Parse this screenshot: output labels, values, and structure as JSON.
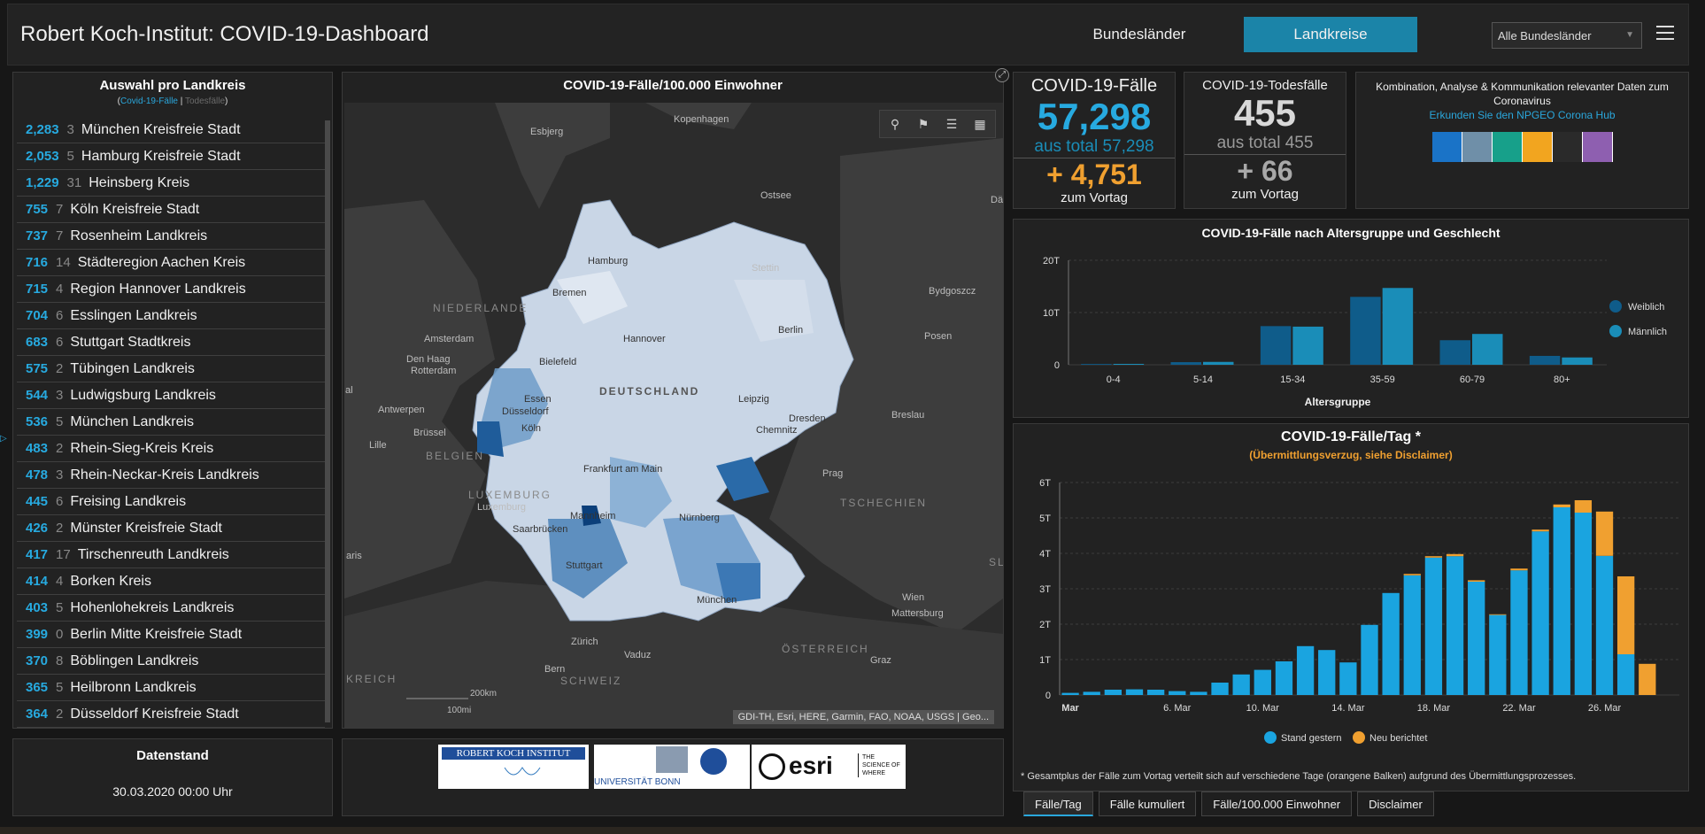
{
  "header": {
    "title": "Robert Koch-Institut: COVID-19-Dashboard",
    "tab_states": "Bundesländer",
    "tab_counties": "Landkreise",
    "region_select": "Alle Bundesländer"
  },
  "list": {
    "title": "Auswahl pro Landkreis",
    "sub_selected": "Covid-19-Fälle",
    "sub_sep": " | ",
    "sub_other": "Todesfälle",
    "rows": [
      {
        "cases": "2,283",
        "deaths": "3",
        "name": "München Kreisfreie Stadt"
      },
      {
        "cases": "2,053",
        "deaths": "5",
        "name": "Hamburg Kreisfreie Stadt"
      },
      {
        "cases": "1,229",
        "deaths": "31",
        "name": "Heinsberg Kreis"
      },
      {
        "cases": "755",
        "deaths": "7",
        "name": "Köln Kreisfreie Stadt"
      },
      {
        "cases": "737",
        "deaths": "7",
        "name": "Rosenheim Landkreis"
      },
      {
        "cases": "716",
        "deaths": "14",
        "name": "Städteregion Aachen Kreis"
      },
      {
        "cases": "715",
        "deaths": "4",
        "name": "Region Hannover Landkreis"
      },
      {
        "cases": "704",
        "deaths": "6",
        "name": "Esslingen Landkreis"
      },
      {
        "cases": "683",
        "deaths": "6",
        "name": "Stuttgart Stadtkreis"
      },
      {
        "cases": "575",
        "deaths": "2",
        "name": "Tübingen Landkreis"
      },
      {
        "cases": "544",
        "deaths": "3",
        "name": "Ludwigsburg Landkreis"
      },
      {
        "cases": "536",
        "deaths": "5",
        "name": "München Landkreis"
      },
      {
        "cases": "483",
        "deaths": "2",
        "name": "Rhein-Sieg-Kreis Kreis"
      },
      {
        "cases": "478",
        "deaths": "3",
        "name": "Rhein-Neckar-Kreis Landkreis"
      },
      {
        "cases": "445",
        "deaths": "6",
        "name": "Freising Landkreis"
      },
      {
        "cases": "426",
        "deaths": "2",
        "name": "Münster Kreisfreie Stadt"
      },
      {
        "cases": "417",
        "deaths": "17",
        "name": "Tirschenreuth Landkreis"
      },
      {
        "cases": "414",
        "deaths": "4",
        "name": "Borken Kreis"
      },
      {
        "cases": "403",
        "deaths": "5",
        "name": "Hohenlohekreis Landkreis"
      },
      {
        "cases": "399",
        "deaths": "0",
        "name": "Berlin Mitte Kreisfreie Stadt"
      },
      {
        "cases": "370",
        "deaths": "8",
        "name": "Böblingen Landkreis"
      },
      {
        "cases": "365",
        "deaths": "5",
        "name": "Heilbronn Landkreis"
      },
      {
        "cases": "364",
        "deaths": "2",
        "name": "Düsseldorf Kreisfreie Stadt"
      }
    ]
  },
  "datenstand": {
    "title": "Datenstand",
    "value": "30.03.2020 00:00 Uhr"
  },
  "map": {
    "title": "COVID-19-Fälle/100.000 Einwohner",
    "attribution": "GDI-TH, Esri, HERE, Garmin, FAO, NOAA, USGS | Geo...",
    "scale_km": "200km",
    "scale_mi": "100mi",
    "country_label": "DEUTSCHLAND",
    "labels": {
      "kopenhagen": "Kopenhagen",
      "esbjerg": "Esbjerg",
      "ostsee": "Ostsee",
      "hamburg": "Hamburg",
      "stettin": "Stettin",
      "bydgoszcz": "Bydgoszcz",
      "niederlande": "NIEDERLANDE",
      "bremen": "Bremen",
      "amsterdam": "Amsterdam",
      "hannover": "Hannover",
      "berlin": "Berlin",
      "posen": "Posen",
      "denhaag": "Den Haag",
      "rotterdam": "Rotterdam",
      "bielefeld": "Bielefeld",
      "essen": "Essen",
      "duesseldorf": "Düsseldorf",
      "koeln": "Köln",
      "leipzig": "Leipzig",
      "dresden": "Dresden",
      "antwerpen": "Antwerpen",
      "bruessel": "Brüssel",
      "belgien": "BELGIEN",
      "lille": "Lille",
      "breslau": "Breslau",
      "chemnitz": "Chemnitz",
      "frankfurt": "Frankfurt am Main",
      "prag": "Prag",
      "luxemburg_c": "LUXEMBURG",
      "luxemburg": "Luxemburg",
      "tschechien": "TSCHECHIEN",
      "mannheim": "Mannheim",
      "nuernberg": "Nürnberg",
      "saarbruecken": "Saarbrücken",
      "paris": "aris",
      "stuttgart": "Stuttgart",
      "muenchen": "München",
      "wien": "Wien",
      "mattersburg": "Mattersburg",
      "zuerich": "Zürich",
      "vaduz": "Vaduz",
      "oesterreich": "ÖSTERREICH",
      "graz": "Graz",
      "bern": "Bern",
      "schweiz": "SCHWEIZ",
      "frankreich": "KREICH",
      "dae": "Dä",
      "al": "al",
      "sl": "SL"
    }
  },
  "logos": {
    "rki": "ROBERT KOCH INSTITUT",
    "bonn": "UNIVERSITÄT BONN",
    "esri": "esri",
    "esri_tag": "THE SCIENCE OF WHERE"
  },
  "cases_card": {
    "label": "COVID-19-Fälle",
    "value": "57,298",
    "total": "aus total 57,298",
    "delta": "+ 4,751",
    "delta_label": "zum Vortag"
  },
  "deaths_card": {
    "label": "COVID-19-Todesfälle",
    "value": "455",
    "total": "aus total 455",
    "delta": "+ 66",
    "delta_label": "zum Vortag"
  },
  "ncoa": {
    "text": "Kombination, Analyse & Kommunikation relevanter Daten zum Coronavirus",
    "link": "Erkunden Sie den NPGEO Corona Hub",
    "icon_colors": [
      "#1a73c7",
      "#6f8fa8",
      "#17a08a",
      "#f2a51f",
      "#2a2a2a",
      "#8e5fb0"
    ]
  },
  "age_chart_panel": {
    "title": "COVID-19-Fälle nach Altersgruppe und Geschlecht",
    "xlabel": "Altersgruppe"
  },
  "daily_chart_panel": {
    "title": "COVID-19-Fälle/Tag *",
    "subtitle": "(Übermittlungsverzug, siehe Disclaimer)",
    "footnote": "* Gesamtplus der Fälle zum Vortag verteilt sich auf verschiedene Tage (orangene Balken) aufgrund des Übermittlungsprozesses."
  },
  "tabs": [
    "Fälle/Tag",
    "Fälle kumuliert",
    "Fälle/100.000 Einwohner",
    "Disclaimer"
  ],
  "chart_data": [
    {
      "type": "bar",
      "title": "COVID-19-Fälle nach Altersgruppe und Geschlecht",
      "xlabel": "Altersgruppe",
      "ylabel": "",
      "categories": [
        "0-4",
        "5-14",
        "15-34",
        "35-59",
        "60-79",
        "80+"
      ],
      "series": [
        {
          "name": "Weiblich",
          "color": "#0f5c8a",
          "values": [
            150,
            500,
            7400,
            13000,
            4700,
            1700
          ]
        },
        {
          "name": "Männlich",
          "color": "#1a8db8",
          "values": [
            170,
            550,
            7300,
            14700,
            5900,
            1400
          ]
        }
      ],
      "ylim": [
        0,
        20000
      ],
      "yticks": [
        0,
        10000,
        20000
      ],
      "ytick_labels": [
        "0",
        "10T",
        "20T"
      ],
      "legend": "right",
      "grid": true
    },
    {
      "type": "bar",
      "title": "COVID-19-Fälle/Tag *",
      "subtitle": "(Übermittlungsverzug, siehe Disclaimer)",
      "stacked": true,
      "categories": [
        "1. Mar",
        "2. Mar",
        "3. Mar",
        "4. Mar",
        "5. Mar",
        "6. Mar",
        "7. Mar",
        "8. Mar",
        "9. Mar",
        "10. Mar",
        "11. Mar",
        "12. Mar",
        "13. Mar",
        "14. Mar",
        "15. Mar",
        "16. Mar",
        "17. Mar",
        "18. Mar",
        "19. Mar",
        "20. Mar",
        "21. Mar",
        "22. Mar",
        "23. Mar",
        "24. Mar",
        "25. Mar",
        "26. Mar",
        "27. Mar",
        "28. Mar",
        "29. Mar"
      ],
      "x_tick_labels": [
        "Mar",
        "",
        "",
        "",
        "",
        "6. Mar",
        "",
        "",
        "",
        "10. Mar",
        "",
        "",
        "",
        "14. Mar",
        "",
        "",
        "",
        "18. Mar",
        "",
        "",
        "",
        "22. Mar",
        "",
        "",
        "",
        "26. Mar",
        "",
        "",
        ""
      ],
      "series": [
        {
          "name": "Stand gestern",
          "color": "#1aa4e0",
          "values": [
            60,
            90,
            150,
            160,
            150,
            110,
            90,
            350,
            580,
            710,
            950,
            1380,
            1270,
            920,
            1980,
            2880,
            3380,
            3880,
            3920,
            3200,
            2260,
            3520,
            4620,
            5300,
            5150,
            3930,
            1150,
            0,
            0
          ]
        },
        {
          "name": "Neu berichtet",
          "color": "#f0a030",
          "values": [
            0,
            0,
            0,
            0,
            0,
            0,
            0,
            0,
            0,
            0,
            0,
            0,
            0,
            0,
            0,
            0,
            40,
            40,
            60,
            40,
            20,
            50,
            50,
            80,
            350,
            1250,
            2200,
            880,
            0
          ]
        }
      ],
      "ylim": [
        0,
        6000
      ],
      "yticks": [
        0,
        1000,
        2000,
        3000,
        4000,
        5000,
        6000
      ],
      "ytick_labels": [
        "0",
        "1T",
        "2T",
        "3T",
        "4T",
        "5T",
        "6T"
      ],
      "legend": "bottom",
      "grid": true
    }
  ]
}
